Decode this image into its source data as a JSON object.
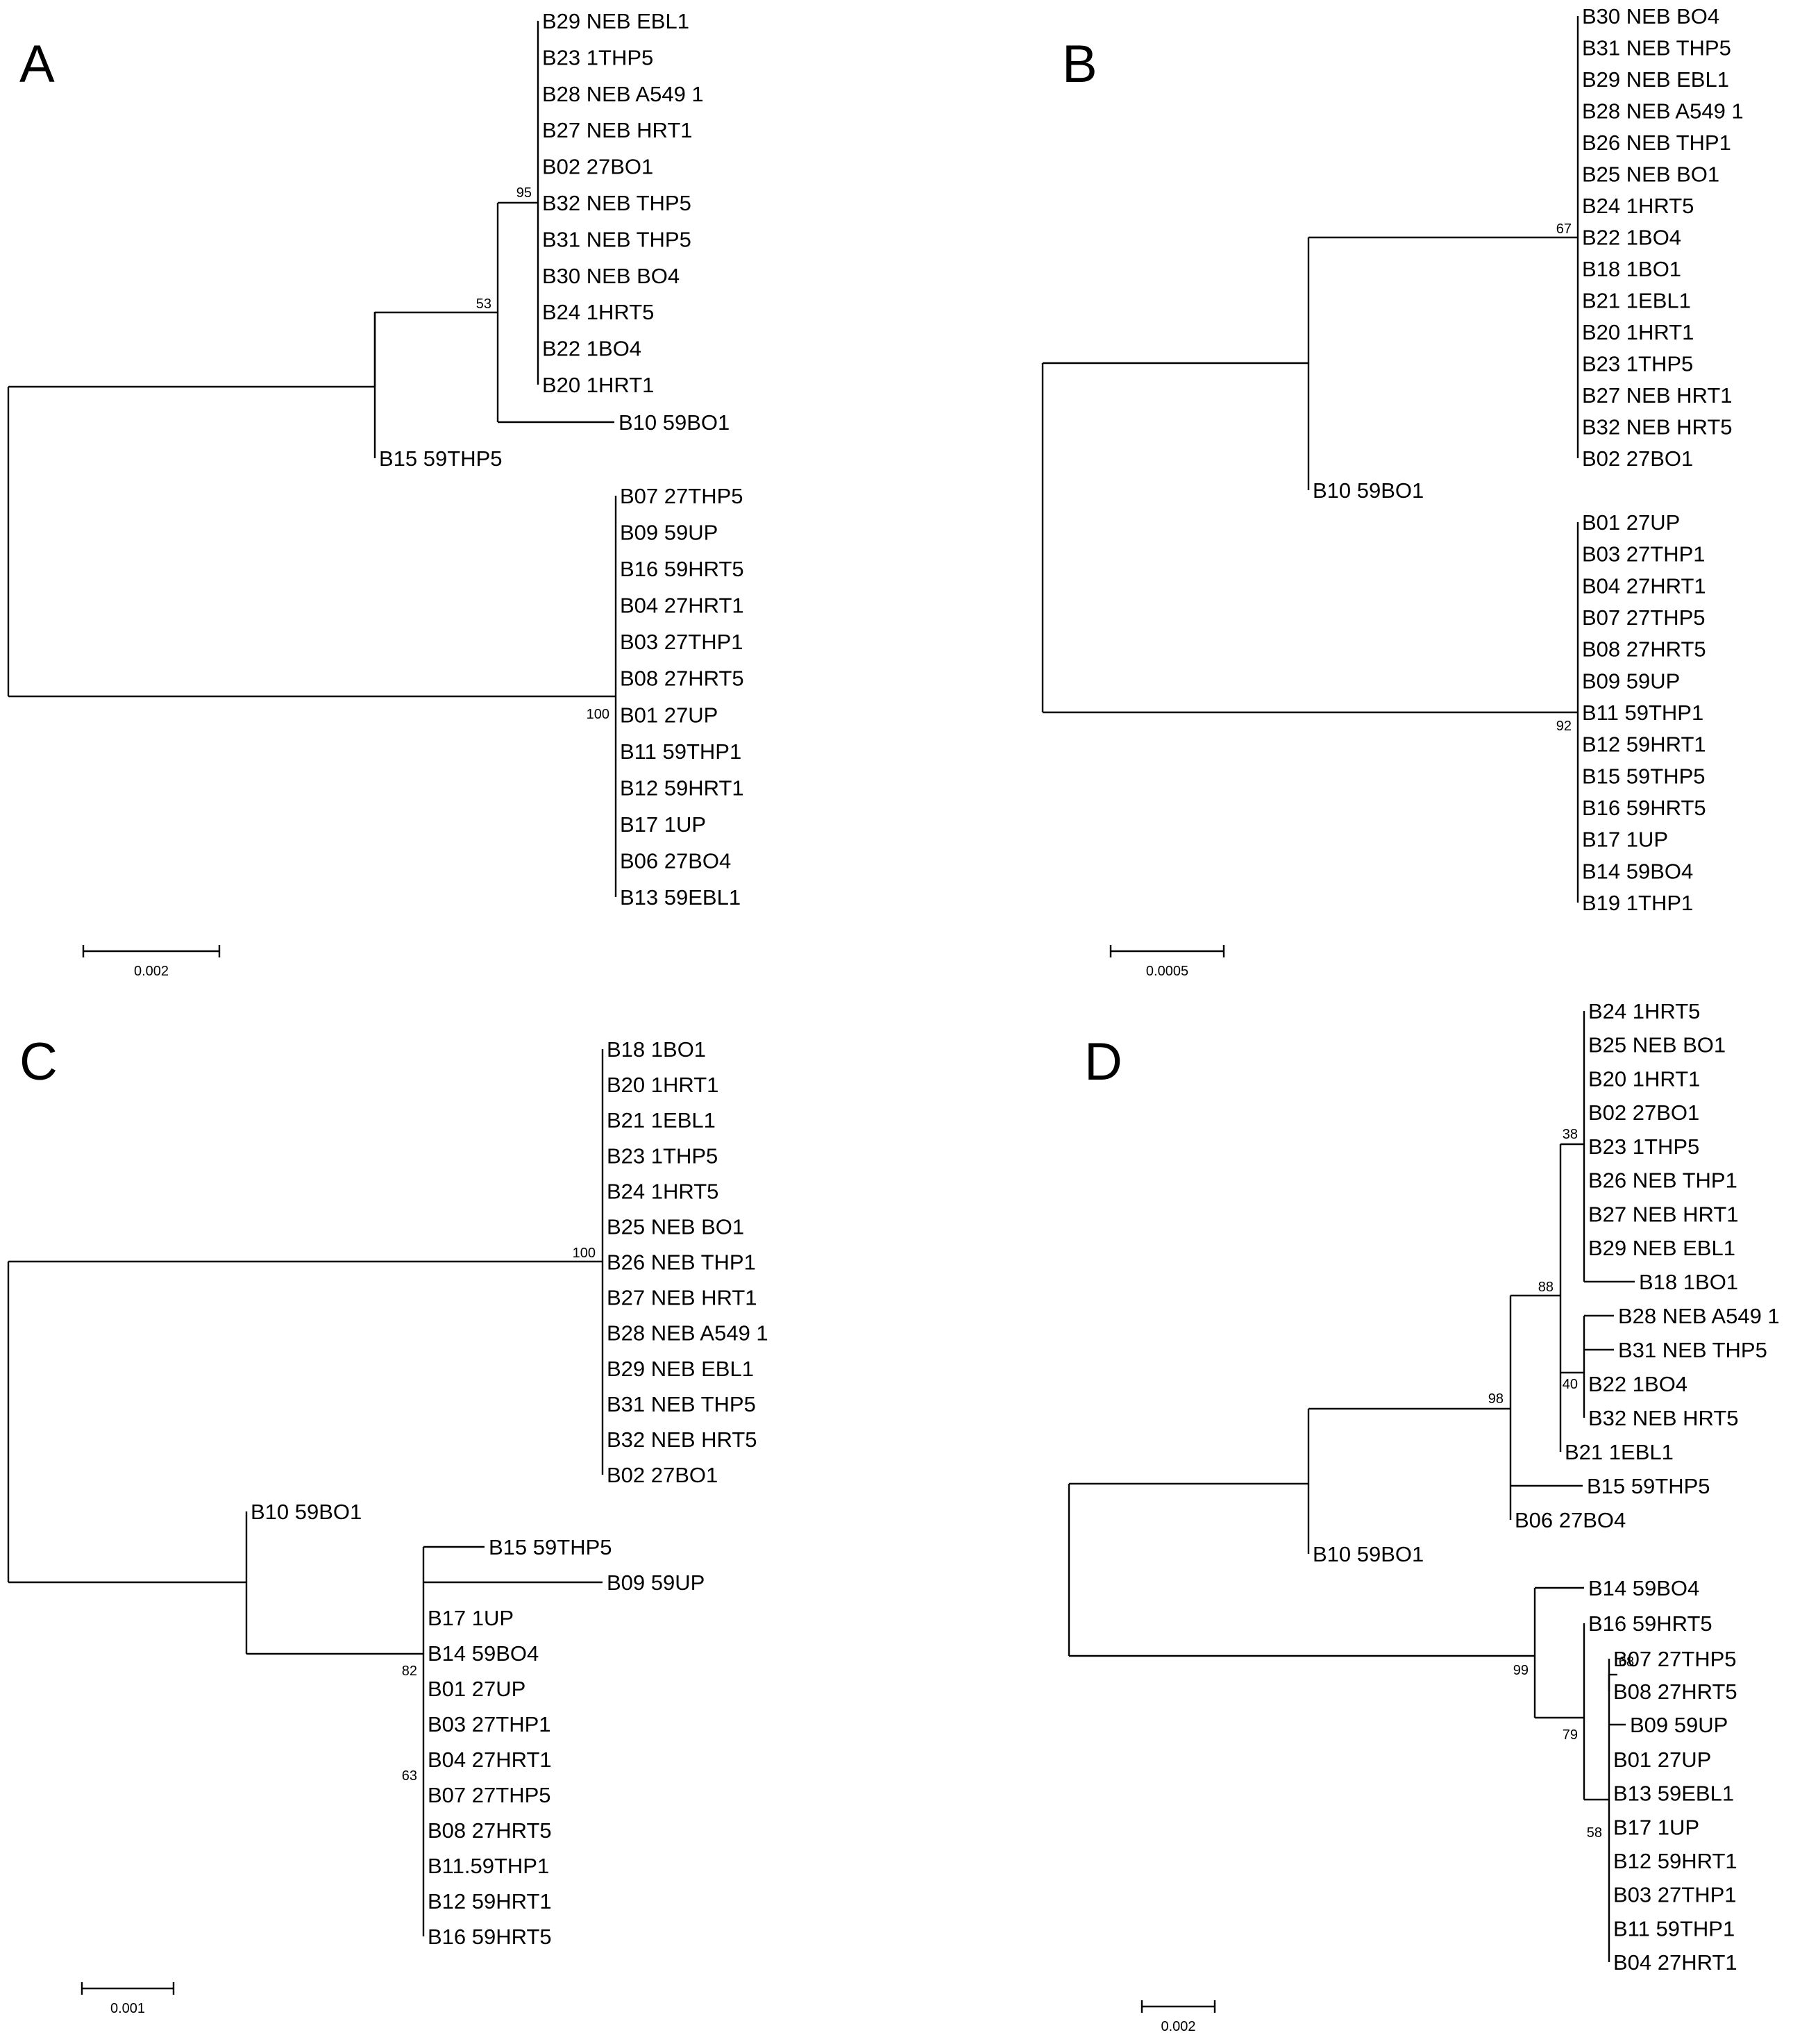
{
  "panels": {
    "A": {
      "label": "A",
      "scale": "0.002",
      "top_group": [
        "B29 NEB EBL1",
        "B23 1THP5",
        "B28 NEB A549 1",
        "B27 NEB HRT1",
        "B02 27BO1",
        "B32 NEB THP5",
        "B31 NEB THP5",
        "B30 NEB BO4",
        "B24 1HRT5",
        "B22 1BO4",
        "B20 1HRT1"
      ],
      "top_group_bootstrap": "95",
      "b10": "B10 59BO1",
      "inner_bootstrap": "53",
      "b15": "B15 59THP5",
      "bottom_group": [
        "B07 27THP5",
        "B09 59UP",
        "B16 59HRT5",
        "B04 27HRT1",
        "B03 27THP1",
        "B08 27HRT5",
        "B01 27UP",
        "B11 59THP1",
        "B12 59HRT1",
        "B17 1UP",
        "B06 27BO4",
        "B13 59EBL1"
      ],
      "bottom_bootstrap": "100"
    },
    "B": {
      "label": "B",
      "scale": "0.0005",
      "top_group": [
        "B30 NEB BO4",
        "B31 NEB THP5",
        "B29 NEB EBL1",
        "B28 NEB A549 1",
        "B26 NEB THP1",
        "B25 NEB BO1",
        "B24 1HRT5",
        "B22 1BO4",
        "B18 1BO1",
        "B21 1EBL1",
        "B20 1HRT1",
        "B23 1THP5",
        "B27 NEB HRT1",
        "B32 NEB HRT5",
        "B02 27BO1"
      ],
      "top_bootstrap": "67",
      "b10": "B10 59BO1",
      "bottom_group": [
        "B01 27UP",
        "B03 27THP1",
        "B04 27HRT1",
        "B07 27THP5",
        "B08 27HRT5",
        "B09 59UP",
        "B11 59THP1",
        "B12 59HRT1",
        "B15 59THP5",
        "B16 59HRT5",
        "B17 1UP",
        "B14 59BO4",
        "B19 1THP1"
      ],
      "bottom_bootstrap": "92"
    },
    "C": {
      "label": "C",
      "scale": "0.001",
      "top_group": [
        "B18 1BO1",
        "B20 1HRT1",
        "B21 1EBL1",
        "B23 1THP5",
        "B24 1HRT5",
        "B25 NEB BO1",
        "B26 NEB THP1",
        "B27 NEB HRT1",
        "B28 NEB A549 1",
        "B29 NEB EBL1",
        "B31 NEB THP5",
        "B32 NEB HRT5",
        "B02 27BO1"
      ],
      "top_bootstrap": "100",
      "b10": "B10 59BO1",
      "b15": "B15 59THP5",
      "b09": "B09 59UP",
      "bottom_group": [
        "B17 1UP",
        "B14 59BO4",
        "B01 27UP",
        "B03 27THP1",
        "B04 27HRT1",
        "B07 27THP5",
        "B08 27HRT5",
        "B11.59THP1",
        "B12 59HRT1",
        "B16 59HRT5"
      ],
      "bootstrap_82": "82",
      "bootstrap_63": "63"
    },
    "D": {
      "label": "D",
      "scale": "0.002",
      "sub1": [
        "B24 1HRT5",
        "B25 NEB BO1",
        "B20 1HRT1",
        "B02 27BO1",
        "B23 1THP5",
        "B26 NEB THP1",
        "B27 NEB HRT1",
        "B29 NEB EBL1"
      ],
      "b18": "B18 1BO1",
      "bootstrap_38": "38",
      "sub2": [
        "B28 NEB A549 1",
        "B31 NEB THP5",
        "B22 1BO4",
        "B32 NEB HRT5"
      ],
      "bootstrap_40": "40",
      "b21": "B21 1EBL1",
      "bootstrap_88": "88",
      "b15": "B15 59THP5",
      "b06": "B06 27BO4",
      "bootstrap_98": "98",
      "b10": "B10 59BO1",
      "b14": "B14 59BO4",
      "b16": "B16 59HRT5",
      "pair": [
        "B07 27THP5",
        "B08 27HRT5"
      ],
      "bootstrap_68": "68",
      "b09": "B09 59UP",
      "rest": [
        "B01 27UP",
        "B13 59EBL1",
        "B17 1UP",
        "B12 59HRT1",
        "B03 27THP1",
        "B11 59THP1",
        "B04 27HRT1"
      ],
      "bootstrap_58": "58",
      "bootstrap_79": "79",
      "bootstrap_99": "99"
    }
  }
}
